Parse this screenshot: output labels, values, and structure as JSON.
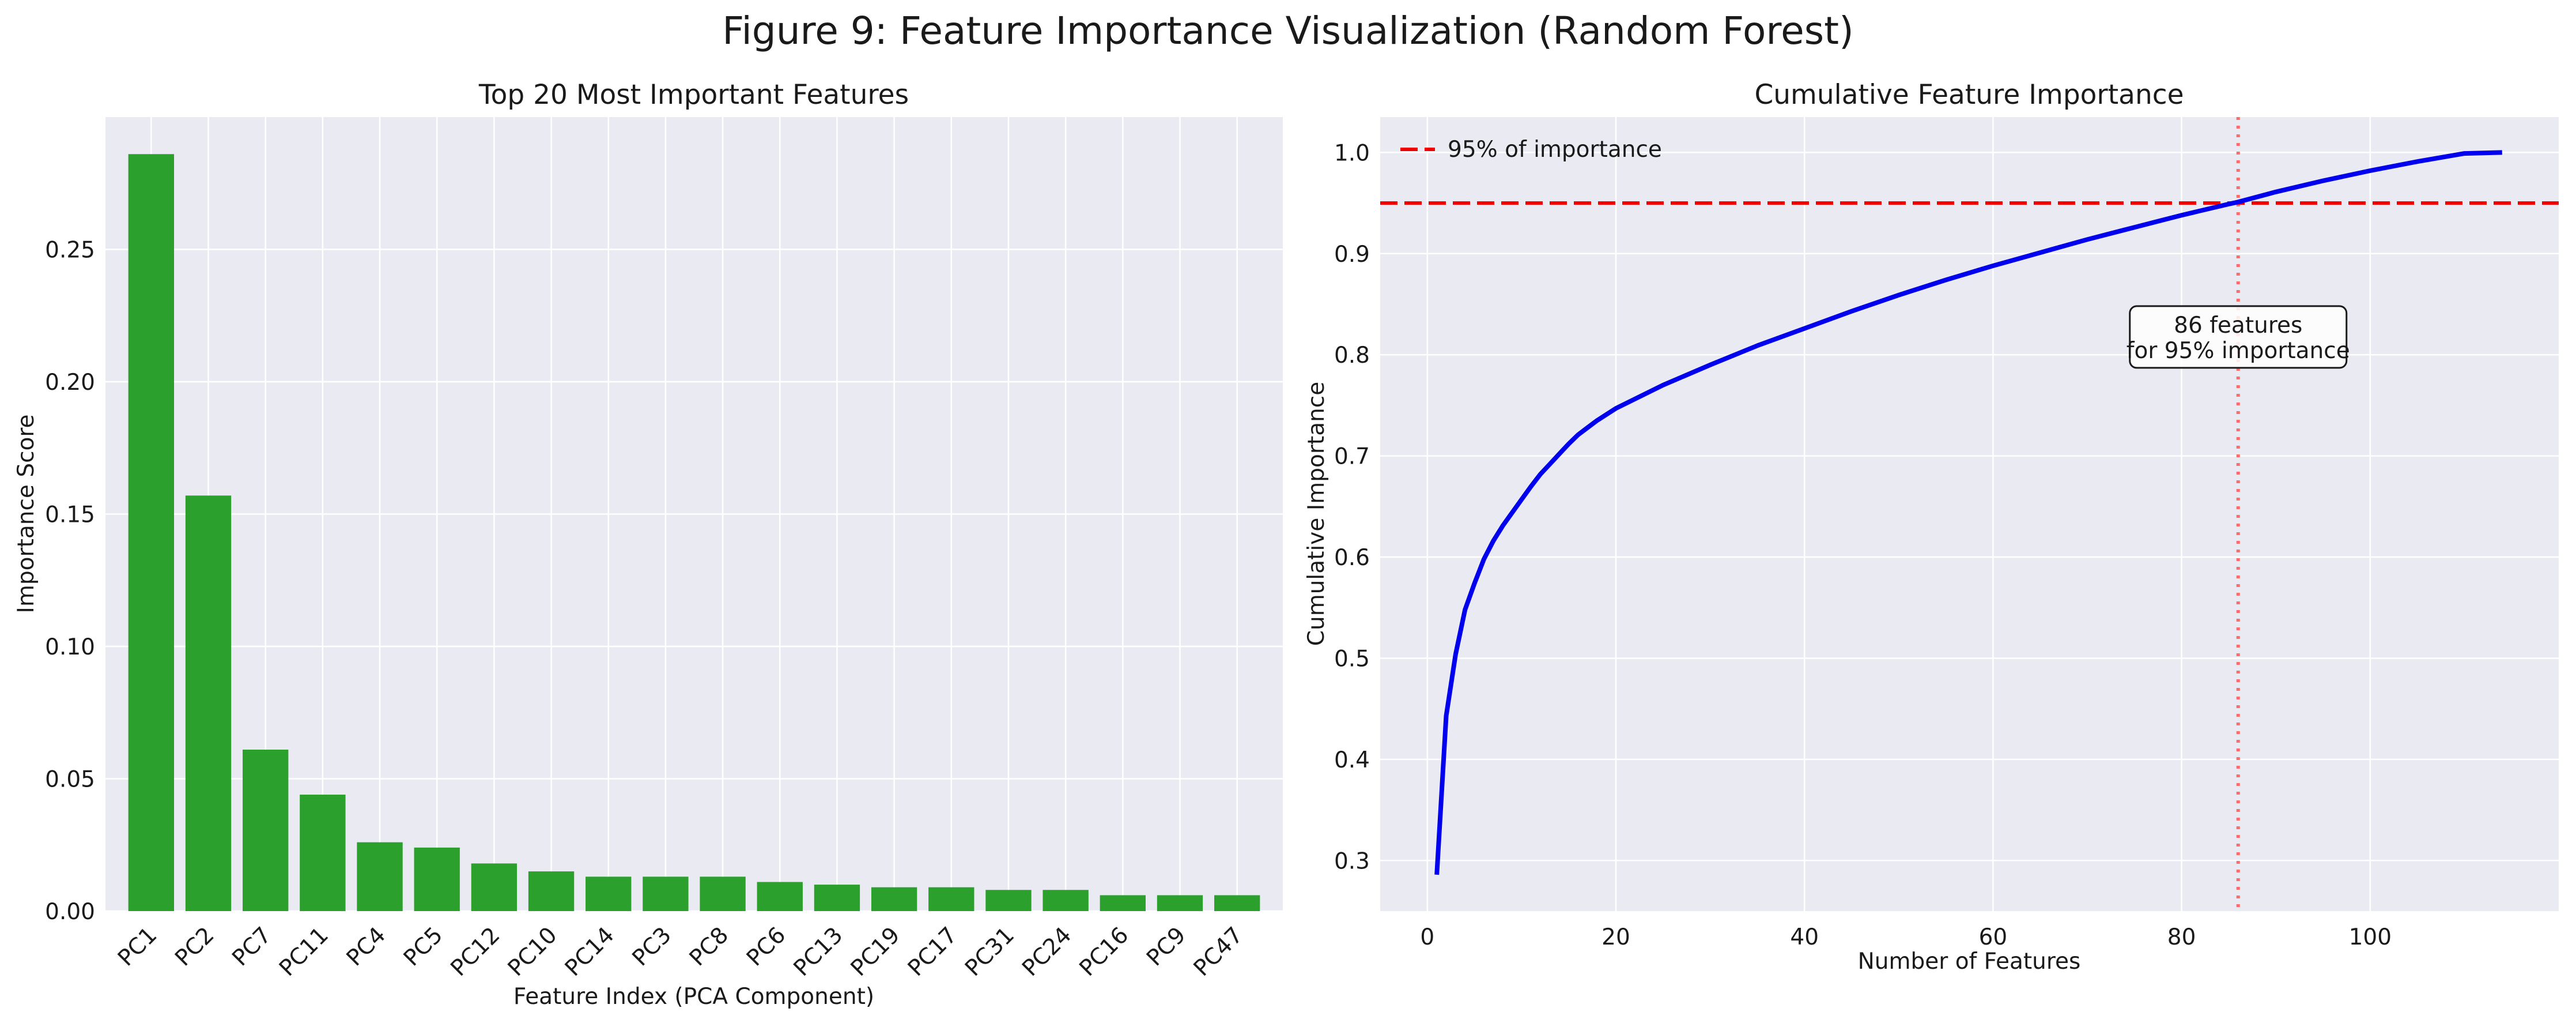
{
  "figure": {
    "title": "Figure 9: Feature Importance Visualization (Random Forest)"
  },
  "chart_data": [
    {
      "type": "bar",
      "title": "Top 20 Most Important Features",
      "xlabel": "Feature Index (PCA Component)",
      "ylabel": "Importance Score",
      "categories": [
        "PC1",
        "PC2",
        "PC7",
        "PC11",
        "PC4",
        "PC5",
        "PC12",
        "PC10",
        "PC14",
        "PC3",
        "PC8",
        "PC6",
        "PC13",
        "PC19",
        "PC17",
        "PC31",
        "PC24",
        "PC16",
        "PC9",
        "PC47"
      ],
      "values": [
        0.286,
        0.157,
        0.061,
        0.044,
        0.026,
        0.024,
        0.018,
        0.015,
        0.013,
        0.013,
        0.013,
        0.011,
        0.01,
        0.009,
        0.009,
        0.008,
        0.008,
        0.006,
        0.006,
        0.006
      ],
      "ylim": [
        0,
        0.3
      ],
      "yticks": [
        0.0,
        0.05,
        0.1,
        0.15,
        0.2,
        0.25
      ],
      "ytick_labels": [
        "0.00",
        "0.05",
        "0.10",
        "0.15",
        "0.20",
        "0.25"
      ],
      "bar_color": "#2ca02c",
      "grid": true
    },
    {
      "type": "line",
      "title": "Cumulative Feature Importance",
      "xlabel": "Number of Features",
      "ylabel": "Cumulative Importance",
      "x": [
        1,
        2,
        3,
        4,
        5,
        6,
        7,
        8,
        9,
        10,
        11,
        12,
        13,
        14,
        15,
        16,
        17,
        18,
        19,
        20,
        25,
        30,
        35,
        40,
        45,
        50,
        55,
        60,
        65,
        70,
        75,
        80,
        85,
        86,
        90,
        95,
        100,
        105,
        110,
        114
      ],
      "y": [
        0.286,
        0.443,
        0.504,
        0.548,
        0.574,
        0.598,
        0.616,
        0.631,
        0.644,
        0.657,
        0.67,
        0.682,
        0.692,
        0.702,
        0.712,
        0.721,
        0.728,
        0.735,
        0.741,
        0.747,
        0.77,
        0.79,
        0.809,
        0.826,
        0.843,
        0.859,
        0.874,
        0.888,
        0.901,
        0.914,
        0.926,
        0.938,
        0.949,
        0.951,
        0.961,
        0.972,
        0.982,
        0.991,
        0.999,
        1.0
      ],
      "xlim": [
        -5,
        120
      ],
      "ylim": [
        0.25,
        1.035
      ],
      "xticks": [
        0,
        20,
        40,
        60,
        80,
        100
      ],
      "xtick_labels": [
        "0",
        "20",
        "40",
        "60",
        "80",
        "100"
      ],
      "yticks": [
        0.3,
        0.4,
        0.5,
        0.6,
        0.7,
        0.8,
        0.9,
        1.0
      ],
      "ytick_labels": [
        "0.3",
        "0.4",
        "0.5",
        "0.6",
        "0.7",
        "0.8",
        "0.9",
        "1.0"
      ],
      "line_color": "#0000ee",
      "threshold": {
        "value": 0.95,
        "label": "95% of importance",
        "color": "#ee0000"
      },
      "vline": {
        "value": 86,
        "color": "#ff6b6b"
      },
      "annotation": {
        "lines": [
          "86 features",
          "for 95% importance"
        ],
        "x": 86,
        "y": 0.815
      },
      "legend_position": "top-left",
      "grid": true
    }
  ]
}
